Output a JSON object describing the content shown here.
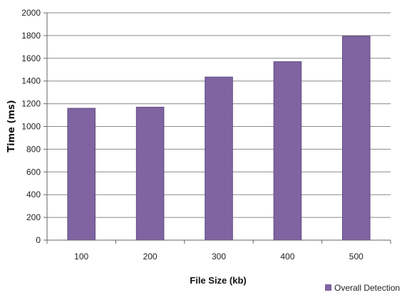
{
  "chart_data": {
    "type": "bar",
    "title": "",
    "xlabel": "File Size (kb)",
    "ylabel": "Time (ms)",
    "categories": [
      "100",
      "200",
      "300",
      "400",
      "500"
    ],
    "series": [
      {
        "name": "Overall Detection",
        "values": [
          1160,
          1170,
          1435,
          1570,
          1795
        ],
        "color": "#8064a2"
      }
    ],
    "ylim": [
      0,
      2000
    ],
    "yticks": [
      0,
      200,
      400,
      600,
      800,
      1000,
      1200,
      1400,
      1600,
      1800,
      2000
    ],
    "grid": true,
    "legend_position": "bottom-right",
    "colors": {
      "bar_fill": "#8064a2",
      "bar_stroke": "#5f4a80",
      "grid": "#8a8a8a",
      "axis": "#666666"
    }
  }
}
